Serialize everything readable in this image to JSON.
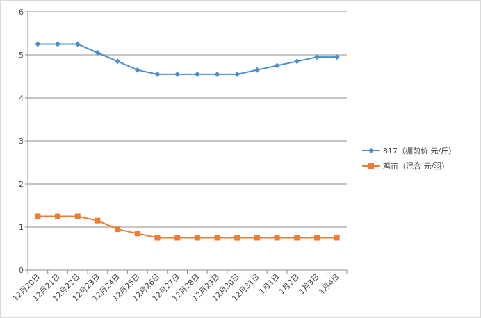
{
  "chart_data": {
    "type": "line",
    "title": "",
    "xlabel": "",
    "ylabel": "",
    "categories": [
      "12月20日",
      "12月21日",
      "12月22日",
      "12月23日",
      "12月24日",
      "12月25日",
      "12月26日",
      "12月27日",
      "12月28日",
      "12月29日",
      "12月30日",
      "12月31日",
      "1月1日",
      "1月2日",
      "1月3日",
      "1月4日"
    ],
    "ylim": [
      0,
      6
    ],
    "yticks": [
      "0",
      "1",
      "2",
      "3",
      "4",
      "5",
      "6"
    ],
    "grid": "horizontal",
    "legend": "right",
    "series": [
      {
        "name": "817（棚前价 元/斤）",
        "color": "#4a8fcd",
        "marker": "diamond",
        "values": [
          5.25,
          5.25,
          5.25,
          5.05,
          4.85,
          4.65,
          4.55,
          4.55,
          4.55,
          4.55,
          4.55,
          4.65,
          4.75,
          4.85,
          4.95,
          4.95
        ]
      },
      {
        "name": "鸡苗（混合 元/羽）",
        "color": "#ed7d31",
        "marker": "square",
        "values": [
          1.25,
          1.25,
          1.25,
          1.15,
          0.95,
          0.85,
          0.75,
          0.75,
          0.75,
          0.75,
          0.75,
          0.75,
          0.75,
          0.75,
          0.75,
          0.75
        ]
      }
    ]
  }
}
